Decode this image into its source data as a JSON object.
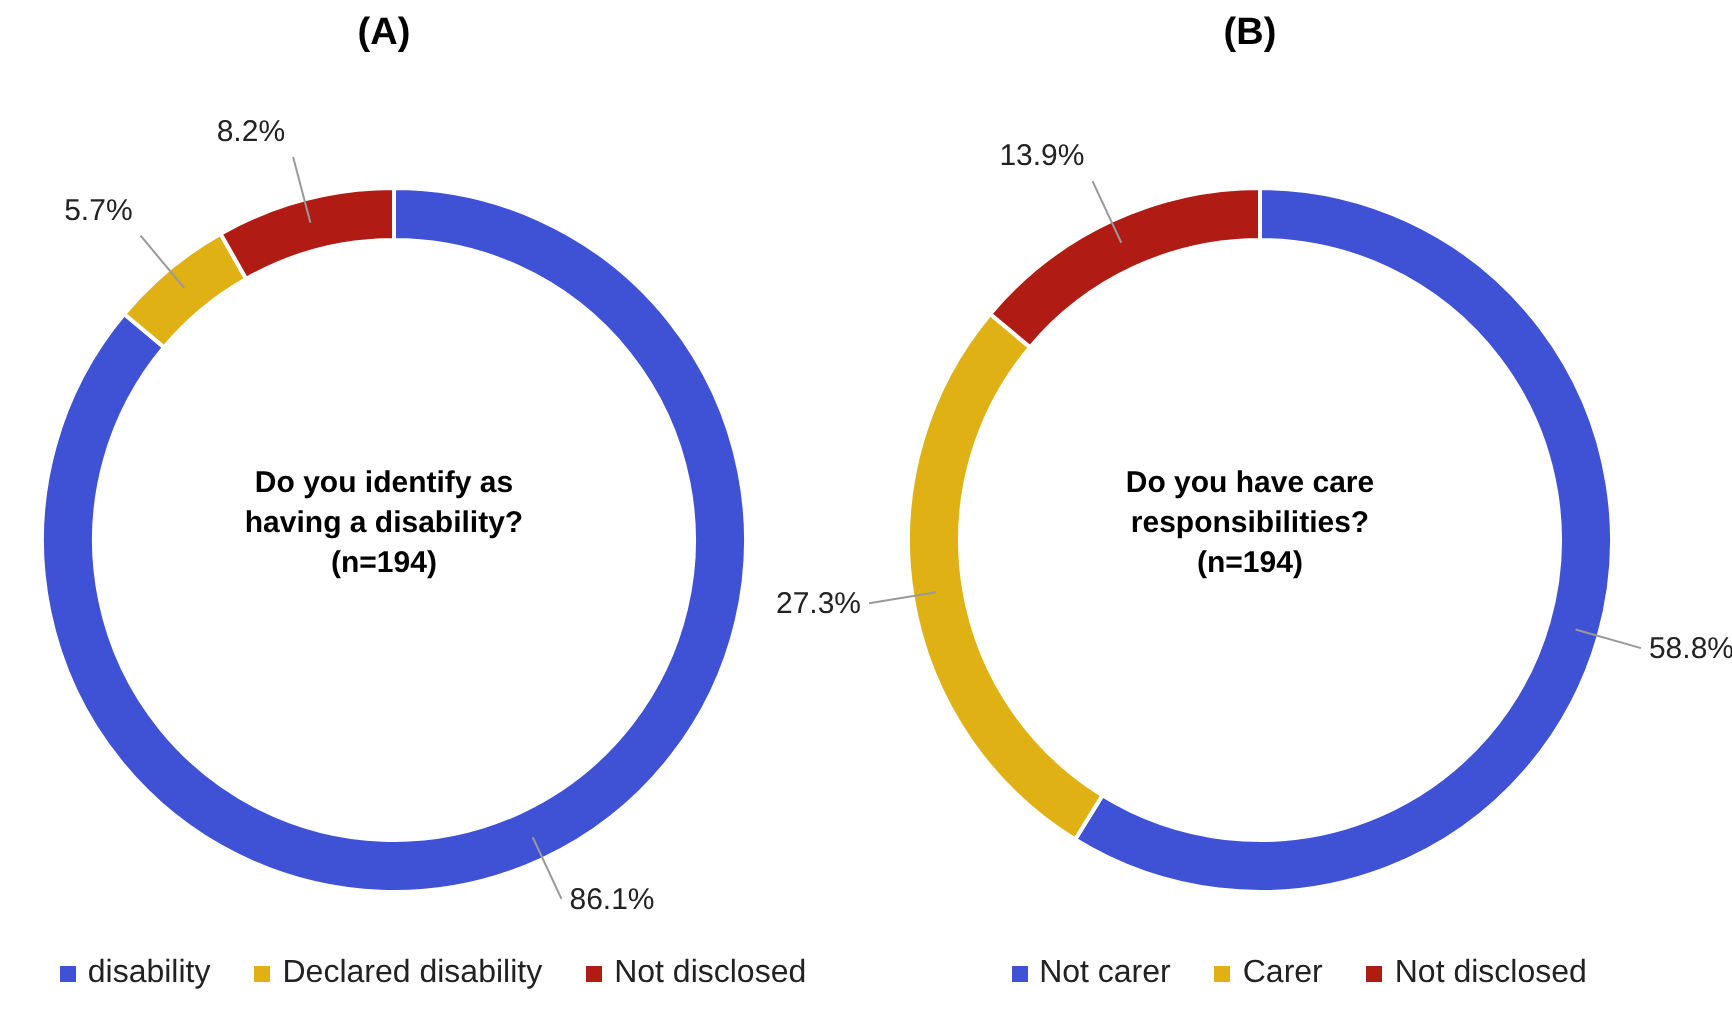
{
  "chart_data": [
    {
      "type": "donut",
      "title": "(A)",
      "categories": [
        "disability",
        "Declared disability",
        "Not disclosed"
      ],
      "values": [
        86.1,
        5.7,
        8.2
      ],
      "colors": [
        "#3f51d5",
        "#dfb114",
        "#b01c14"
      ],
      "annotations": [
        "Do you identify as\nhaving a disability?\n(n=194)"
      ],
      "value_labels": [
        "86.1%",
        "5.7%",
        "8.2%"
      ],
      "legend": "bottom"
    },
    {
      "type": "donut",
      "title": "(B)",
      "categories": [
        "Not carer",
        "Carer",
        "Not disclosed"
      ],
      "values": [
        58.8,
        27.3,
        13.9
      ],
      "colors": [
        "#3f51d5",
        "#dfb114",
        "#b01c14"
      ],
      "annotations": [
        "Do you have care\nresponsibilities?\n(n=194)"
      ],
      "value_labels": [
        "58.8%",
        "27.3%",
        "13.9%"
      ],
      "legend": "bottom"
    }
  ]
}
